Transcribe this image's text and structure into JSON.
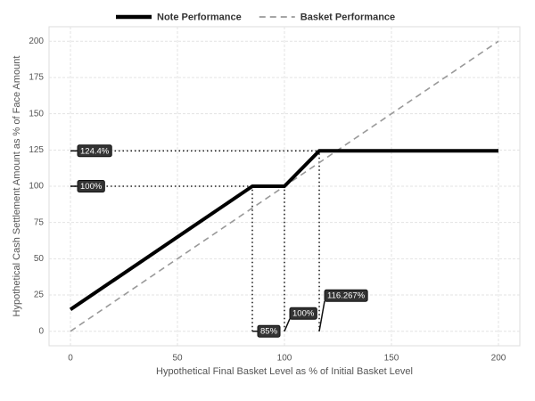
{
  "chart_data": {
    "type": "line",
    "xlabel": "Hypothetical Final Basket Level as % of Initial Basket Level",
    "ylabel": "Hypothetical Cash Settlement Amount as % of Face Amount",
    "xlim": [
      -10,
      210
    ],
    "ylim": [
      -10,
      210
    ],
    "xticks": [
      0,
      50,
      100,
      150,
      200
    ],
    "yticks": [
      0,
      25,
      50,
      75,
      100,
      125,
      150,
      175,
      200
    ],
    "grid": true,
    "legend": "top",
    "series": [
      {
        "name": "Note Performance",
        "color": "#000000",
        "style": "solid",
        "x": [
          0,
          85,
          100,
          116.267,
          200
        ],
        "values": [
          15,
          100,
          100,
          124.4,
          124.4
        ]
      },
      {
        "name": "Basket Performance",
        "color": "#999999",
        "style": "dashed",
        "x": [
          0,
          200
        ],
        "values": [
          0,
          200
        ]
      }
    ],
    "annotations": [
      {
        "axis": "y",
        "x": 116.267,
        "y": 124.4,
        "label": "124.4%"
      },
      {
        "axis": "y",
        "x": 100,
        "y": 100,
        "label": "100%"
      },
      {
        "axis": "x",
        "x": 85,
        "y": 100,
        "label": "85%"
      },
      {
        "axis": "x",
        "x": 100,
        "y": 100,
        "label": "100%"
      },
      {
        "axis": "x",
        "x": 116.267,
        "y": 124.4,
        "label": "116.267%"
      }
    ]
  }
}
